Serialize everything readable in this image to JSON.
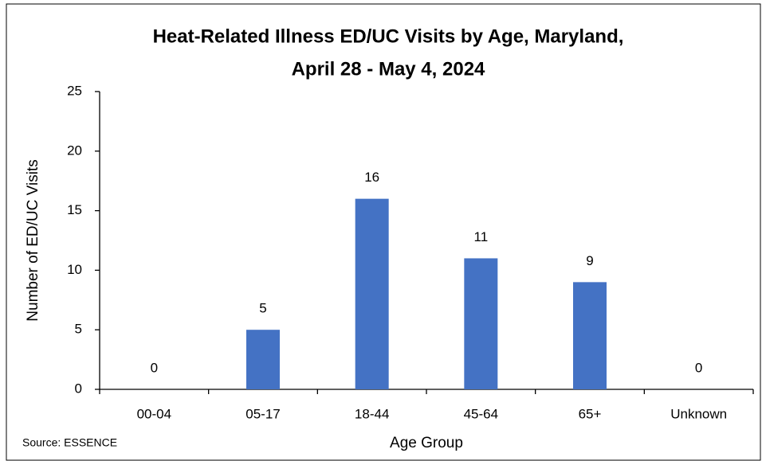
{
  "chart_data": {
    "type": "bar",
    "title": [
      "Heat-Related Illness ED/UC Visits by Age, Maryland,",
      "April 28 - May 4, 2024"
    ],
    "categories": [
      "00-04",
      "05-17",
      "18-44",
      "45-64",
      "65+",
      "Unknown"
    ],
    "values": [
      0,
      5,
      16,
      11,
      9,
      0
    ],
    "color": "#4472c4",
    "xlabel": "Age Group",
    "ylabel": "Number of ED/UC Visits",
    "source": "Source: ESSENCE",
    "ylim": [
      0,
      25
    ],
    "yticks": [
      0,
      5,
      10,
      15,
      20,
      25
    ],
    "grid": false
  }
}
